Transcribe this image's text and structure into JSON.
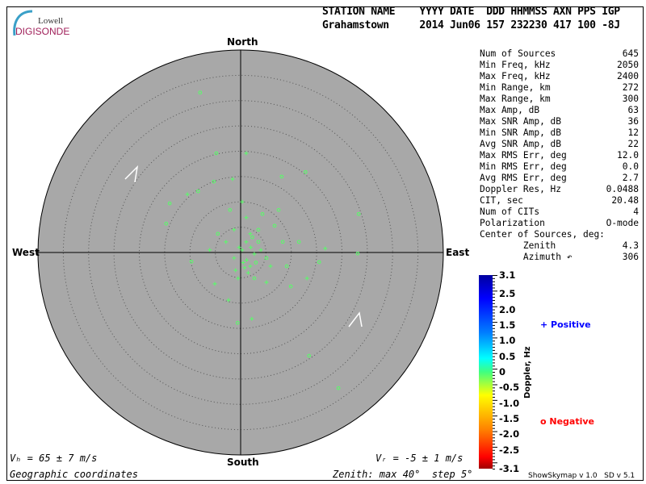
{
  "logo": {
    "line1": "Lowell",
    "line2": "DIGISONDE"
  },
  "header": {
    "labels": "STATION NAME    YYYY DATE  DDD HHMMSS AXN PPS IGP",
    "values": "Grahamstown     2014 Jun06 157 232230 417 100 -8J"
  },
  "stats": [
    {
      "label": "Num of Sources",
      "value": "645"
    },
    {
      "label": "Min Freq, kHz",
      "value": "2050"
    },
    {
      "label": "Max Freq, kHz",
      "value": "2400"
    },
    {
      "label": "Min Range, km",
      "value": "272"
    },
    {
      "label": "Max Range, km",
      "value": "300"
    },
    {
      "label": "Max Amp, dB",
      "value": "63"
    },
    {
      "label": "Max SNR Amp, dB",
      "value": "36"
    },
    {
      "label": "Min SNR Amp, dB",
      "value": "12"
    },
    {
      "label": "Avg SNR Amp, dB",
      "value": "22"
    },
    {
      "label": "Max RMS Err, deg",
      "value": "12.0"
    },
    {
      "label": "Min RMS Err, deg",
      "value": "0.0"
    },
    {
      "label": "Avg RMS Err, deg",
      "value": "2.7"
    },
    {
      "label": "Doppler Res, Hz",
      "value": "0.0488"
    },
    {
      "label": "CIT, sec",
      "value": "20.48"
    },
    {
      "label": "Num of CITs",
      "value": "4"
    },
    {
      "label": "Polarization",
      "value": "O-mode"
    },
    {
      "label": "Center of Sources, deg:",
      "value": ""
    },
    {
      "label": "        Zenith",
      "value": "4.3"
    },
    {
      "label": "        Azimuth ↶",
      "value": "306"
    }
  ],
  "directions": {
    "north": "North",
    "south": "South",
    "east": "East",
    "west": "West"
  },
  "footer": {
    "vh": "Vₕ = 65 ± 7 m/s",
    "vz": "Vᵣ = -5 ± 1 m/s",
    "coords": "Geographic coordinates",
    "zenith": "Zenith: max 40°  step 5°",
    "version": "ShowSkymap v 1.0   SD v 5.1"
  },
  "colorbar": {
    "title": "Doppler, Hz",
    "ticks": [
      "3.1",
      "2.5",
      "2.0",
      "1.5",
      "1.0",
      "0.5",
      "0",
      "-0.5",
      "-1.0",
      "-1.5",
      "-2.0",
      "-2.5",
      "-3.1"
    ],
    "legend_positive": "+ Positive",
    "legend_negative": "o Negative",
    "positive_color": "#0000ff",
    "negative_color": "#ff0000"
  },
  "chart_data": {
    "type": "scatter",
    "projection": "polar skymap, zenith angle radial, North up, East right",
    "zenith_max_deg": 40,
    "zenith_step_deg": 5,
    "doppler_range_hz": [
      -3.1,
      3.1
    ],
    "colors": {
      "disk": "#a8a8a8",
      "ring": "#555555",
      "marker_default": "#55ff66"
    },
    "sources_east_north_deg_doppler_hz": [
      [
        -8.0,
        31.6,
        -0.1
      ],
      [
        -4.8,
        19.6,
        -0.1
      ],
      [
        1.1,
        19.6,
        0.1
      ],
      [
        -1.6,
        14.5,
        0.1
      ],
      [
        8.1,
        15.0,
        -0.1
      ],
      [
        12.8,
        15.9,
        -0.1
      ],
      [
        -8.4,
        12.1,
        -0.1
      ],
      [
        -10.5,
        11.5,
        0.1
      ],
      [
        -5.3,
        14.0,
        -0.1
      ],
      [
        -14.0,
        9.7,
        -0.1
      ],
      [
        -14.7,
        5.7,
        -0.1
      ],
      [
        23.3,
        7.6,
        -0.1
      ],
      [
        23.1,
        -0.2,
        -0.1
      ],
      [
        16.7,
        0.8,
        0.1
      ],
      [
        -9.7,
        -1.8,
        -0.1
      ],
      [
        -5.1,
        -6.2,
        0.1
      ],
      [
        -2.4,
        -9.4,
        0.1
      ],
      [
        -0.6,
        -13.9,
        -0.1
      ],
      [
        2.2,
        -13.1,
        0.1
      ],
      [
        13.5,
        -20.4,
        -0.1
      ],
      [
        19.3,
        -26.8,
        -0.1
      ],
      [
        9.9,
        -6.7,
        -0.1
      ],
      [
        13.1,
        -5.1,
        0.1
      ],
      [
        5.1,
        -5.9,
        0.1
      ],
      [
        1.9,
        3.7,
        0.1
      ],
      [
        3.5,
        2.1,
        -0.1
      ],
      [
        0.3,
        0.5,
        0.1
      ],
      [
        -1.3,
        -1.1,
        0.1
      ],
      [
        5.1,
        -1.1,
        -0.1
      ],
      [
        6.7,
        5.3,
        -0.1
      ],
      [
        8.3,
        2.1,
        -0.1
      ],
      [
        -2.9,
        2.1,
        0.1
      ],
      [
        -4.5,
        3.7,
        -0.1
      ],
      [
        1.9,
        -2.7,
        0.1
      ],
      [
        1.1,
        6.9,
        0.1
      ],
      [
        4.3,
        7.6,
        -0.1
      ],
      [
        9.1,
        -2.7,
        -0.1
      ],
      [
        11.5,
        2.1,
        -0.1
      ],
      [
        -6.1,
        0.5,
        0.1
      ],
      [
        -0.5,
        -5.1,
        0.1
      ],
      [
        2.7,
        -5.1,
        -0.1
      ],
      [
        5.9,
        -2.7,
        0.1
      ],
      [
        0.3,
        10.0,
        0.1
      ],
      [
        -2.1,
        8.4,
        -0.1
      ],
      [
        7.5,
        8.4,
        -0.1
      ],
      [
        15.5,
        -1.9,
        -0.1
      ],
      [
        -1.3,
        4.5,
        0.1
      ],
      [
        3.5,
        4.5,
        -0.1
      ],
      [
        1.1,
        2.1,
        0.1
      ],
      [
        2.7,
        -0.3,
        0.1
      ],
      [
        0.5,
        -2.0,
        0.1
      ],
      [
        1.5,
        -4.0,
        0.1
      ],
      [
        -0.3,
        1.0,
        0.1
      ],
      [
        2.0,
        1.0,
        0.1
      ],
      [
        3.0,
        -2.0,
        -0.1
      ],
      [
        0.8,
        -3.0,
        0.1
      ],
      [
        4.0,
        0.5,
        0.1
      ],
      [
        -1.0,
        -3.5,
        0.1
      ],
      [
        2.3,
        3.0,
        -0.1
      ],
      [
        1.2,
        -1.5,
        0.1
      ]
    ]
  }
}
